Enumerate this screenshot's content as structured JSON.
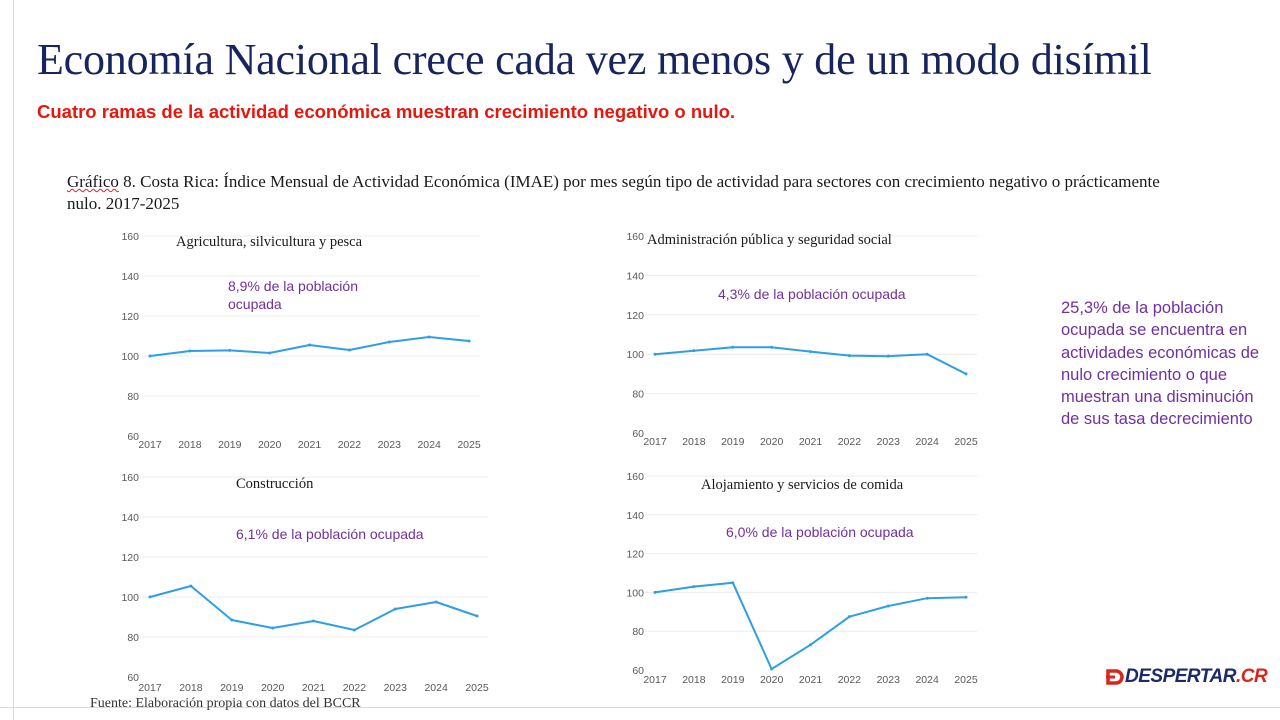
{
  "title": "Economía Nacional crece cada vez menos y de un modo disímil",
  "subtitle": "Cuatro ramas de la actividad económica muestran crecimiento negativo o nulo.",
  "caption": {
    "lead": "Gráfico",
    "rest": " 8. Costa Rica: Índice Mensual de Actividad Económica (IMAE) por mes según tipo de actividad para sectores con crecimiento negativo o prácticamente nulo. 2017-2025"
  },
  "side_note": "25,3% de la población ocupada se encuentra en actividades económicas de nulo crecimiento o que muestran una disminución de sus tasa decrecimiento",
  "source": "Fuente: Elaboración propia con datos del BCCR",
  "brand": {
    "main": "DESPERTAR",
    "suffix": ".CR",
    "colors": {
      "main": "#1c2a6b",
      "accent": "#d9261c"
    }
  },
  "colors": {
    "title": "#17245e",
    "subtitle": "#e8170d",
    "annotation": "#7030a0",
    "line": "#2f9ee6"
  },
  "chart_data": [
    {
      "type": "line",
      "title": "Agricultura, silvicultura y pesca",
      "annotation": [
        "8,9% de la población",
        "ocupada"
      ],
      "x": [
        "2017",
        "2018",
        "2019",
        "2020",
        "2021",
        "2022",
        "2023",
        "2024",
        "2025"
      ],
      "series": [
        {
          "values": [
            100,
            102.5,
            102.8,
            101.5,
            105.5,
            103,
            107,
            109.5,
            107.5
          ]
        }
      ],
      "yticks": [
        60,
        80,
        100,
        120,
        140,
        160
      ],
      "ylim": [
        60,
        160
      ],
      "grid": true
    },
    {
      "type": "line",
      "title": "Administración pública y seguridad social",
      "annotation": [
        "4,3% de la población ocupada"
      ],
      "x": [
        "2017",
        "2018",
        "2019",
        "2020",
        "2021",
        "2022",
        "2023",
        "2024",
        "2025"
      ],
      "series": [
        {
          "values": [
            100,
            101.8,
            103.5,
            103.5,
            101.3,
            99.3,
            99,
            100,
            90
          ]
        }
      ],
      "yticks": [
        60,
        80,
        100,
        120,
        140,
        160
      ],
      "ylim": [
        60,
        160
      ],
      "grid": true
    },
    {
      "type": "line",
      "title": "Construcción",
      "annotation": [
        "6,1% de la población ocupada"
      ],
      "x": [
        "2017",
        "2018",
        "2019",
        "2020",
        "2021",
        "2022",
        "2023",
        "2024",
        "2025"
      ],
      "series": [
        {
          "values": [
            100,
            105.5,
            88.5,
            84.5,
            88,
            83.5,
            94,
            97.5,
            90.5
          ]
        }
      ],
      "yticks": [
        60,
        80,
        100,
        120,
        140,
        160
      ],
      "ylim": [
        60,
        160
      ],
      "grid": true
    },
    {
      "type": "line",
      "title": "Alojamiento y servicios de comida",
      "annotation": [
        "6,0% de la población ocupada"
      ],
      "x": [
        "2017",
        "2018",
        "2019",
        "2020",
        "2021",
        "2022",
        "2023",
        "2024",
        "2025"
      ],
      "series": [
        {
          "values": [
            100,
            103,
            105,
            60.5,
            73,
            87.5,
            93,
            97,
            97.5
          ]
        }
      ],
      "yticks": [
        60,
        80,
        100,
        120,
        140,
        160
      ],
      "ylim": [
        60,
        160
      ],
      "grid": true
    }
  ]
}
